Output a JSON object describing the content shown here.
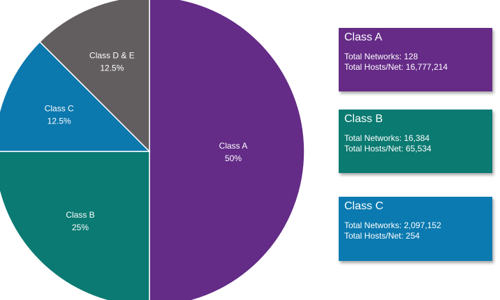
{
  "chart_data": {
    "type": "pie",
    "title": "",
    "start_angle_deg": 0,
    "direction": "clockwise",
    "slices": [
      {
        "name": "Class A",
        "value": 50,
        "percent_label": "50%",
        "color": "#642b87"
      },
      {
        "name": "Class B",
        "value": 25,
        "percent_label": "25%",
        "color": "#0a7a72"
      },
      {
        "name": "Class C",
        "value": 12.5,
        "percent_label": "12.5%",
        "color": "#0b78ae"
      },
      {
        "name": "Class D & E",
        "value": 12.5,
        "percent_label": "12.5%",
        "color": "#625e5f"
      }
    ]
  },
  "cards": [
    {
      "title": "Class A",
      "networks": "Total Networks: 128",
      "hosts": "Total Hosts/Net: 16,777,214",
      "color": "#652b87"
    },
    {
      "title": "Class B",
      "networks": "Total Networks: 16,384",
      "hosts": "Total Hosts/Net: 65,534",
      "color": "#0b7a71"
    },
    {
      "title": "Class C",
      "networks": "Total Networks: 2,097,152",
      "hosts": "Total Hosts/Net: 254",
      "color": "#0b7ab0"
    }
  ]
}
